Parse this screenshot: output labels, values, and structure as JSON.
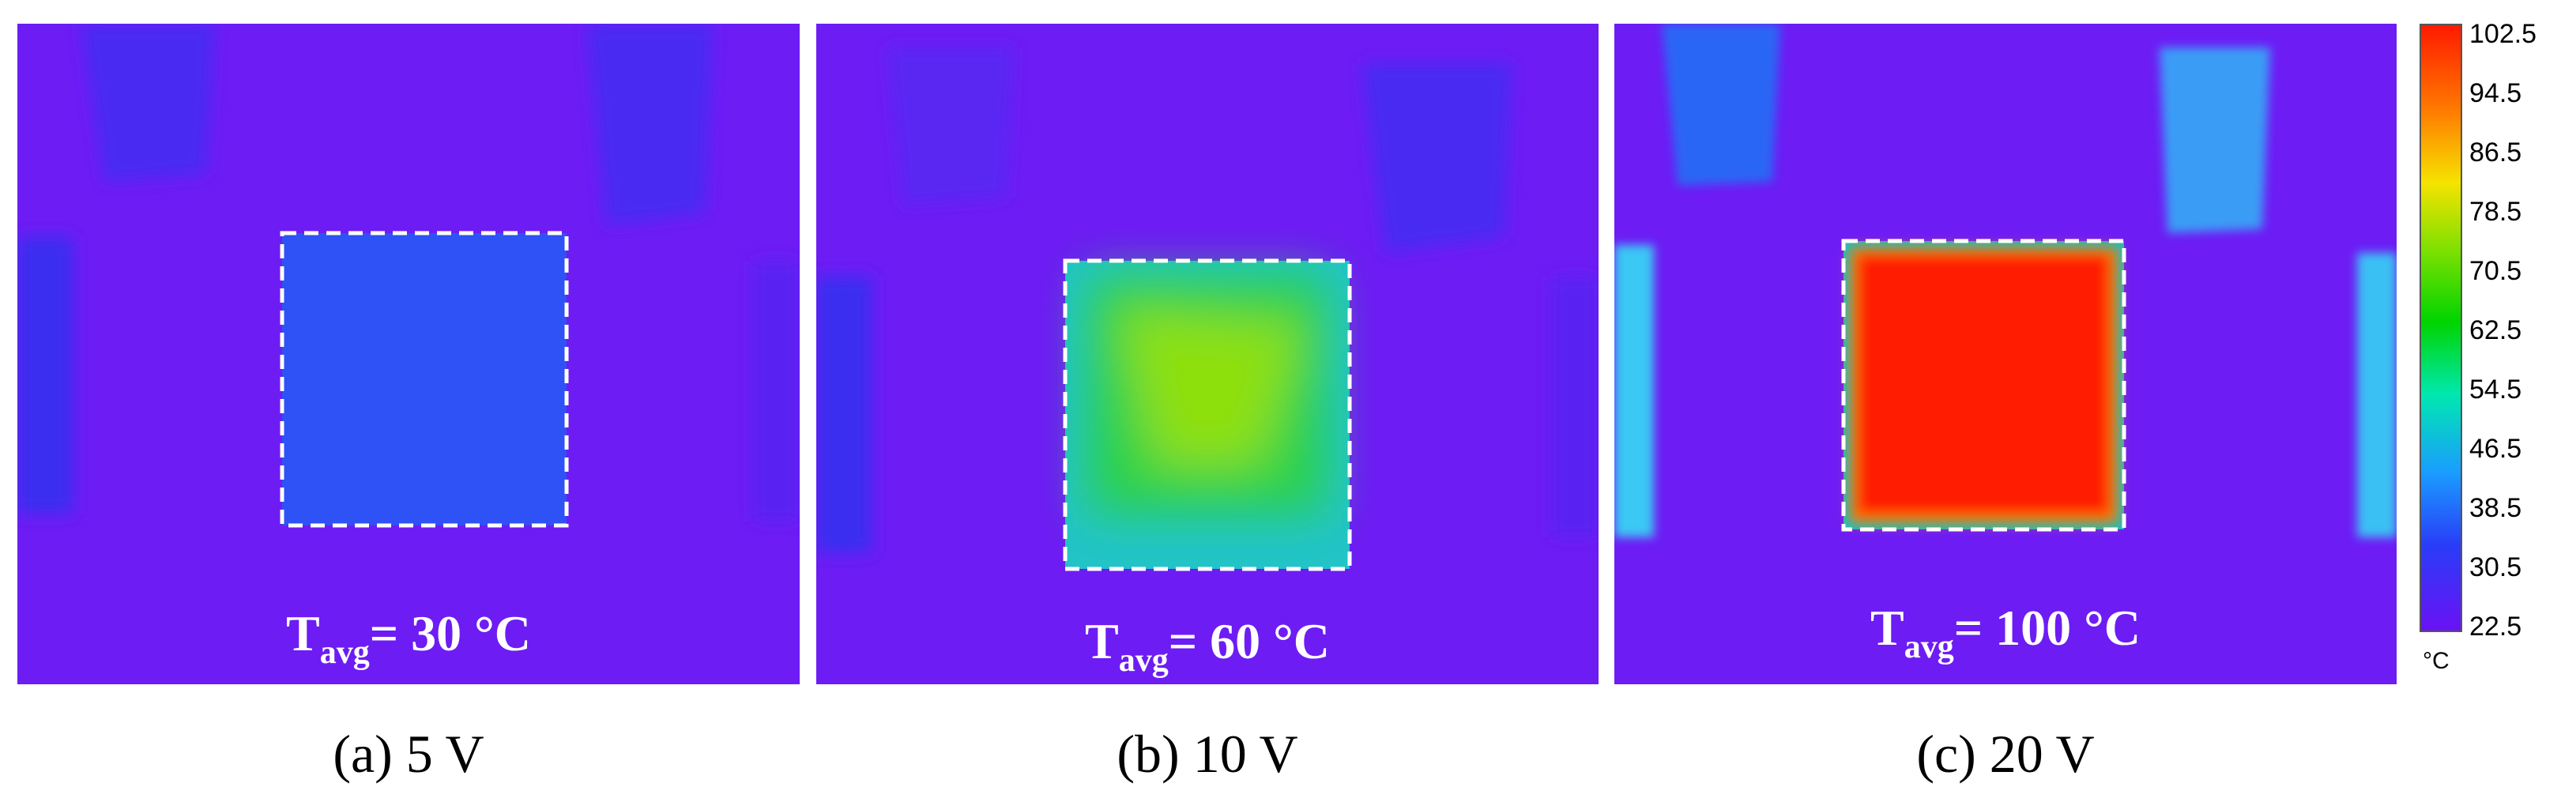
{
  "panels": [
    {
      "id": "a",
      "t_avg": "= 30 °C",
      "t_label": "T",
      "t_sub": "avg",
      "caption": "(a) 5 V"
    },
    {
      "id": "b",
      "t_avg": "= 60 °C",
      "t_label": "T",
      "t_sub": "avg",
      "caption": "(b) 10 V"
    },
    {
      "id": "c",
      "t_avg": "= 100 °C",
      "t_label": "T",
      "t_sub": "avg",
      "caption": "(c) 20 V"
    }
  ],
  "colorbar": {
    "ticks": [
      "102.5",
      "94.5",
      "86.5",
      "78.5",
      "70.5",
      "62.5",
      "54.5",
      "46.5",
      "38.5",
      "30.5",
      "22.5"
    ],
    "unit": "°C",
    "min": 22.5,
    "max": 102.5
  },
  "colors": {
    "background": "#6d1cf4",
    "cold": "#2a3cf8",
    "warm": "#00d400",
    "hot": "#ff1a00"
  }
}
